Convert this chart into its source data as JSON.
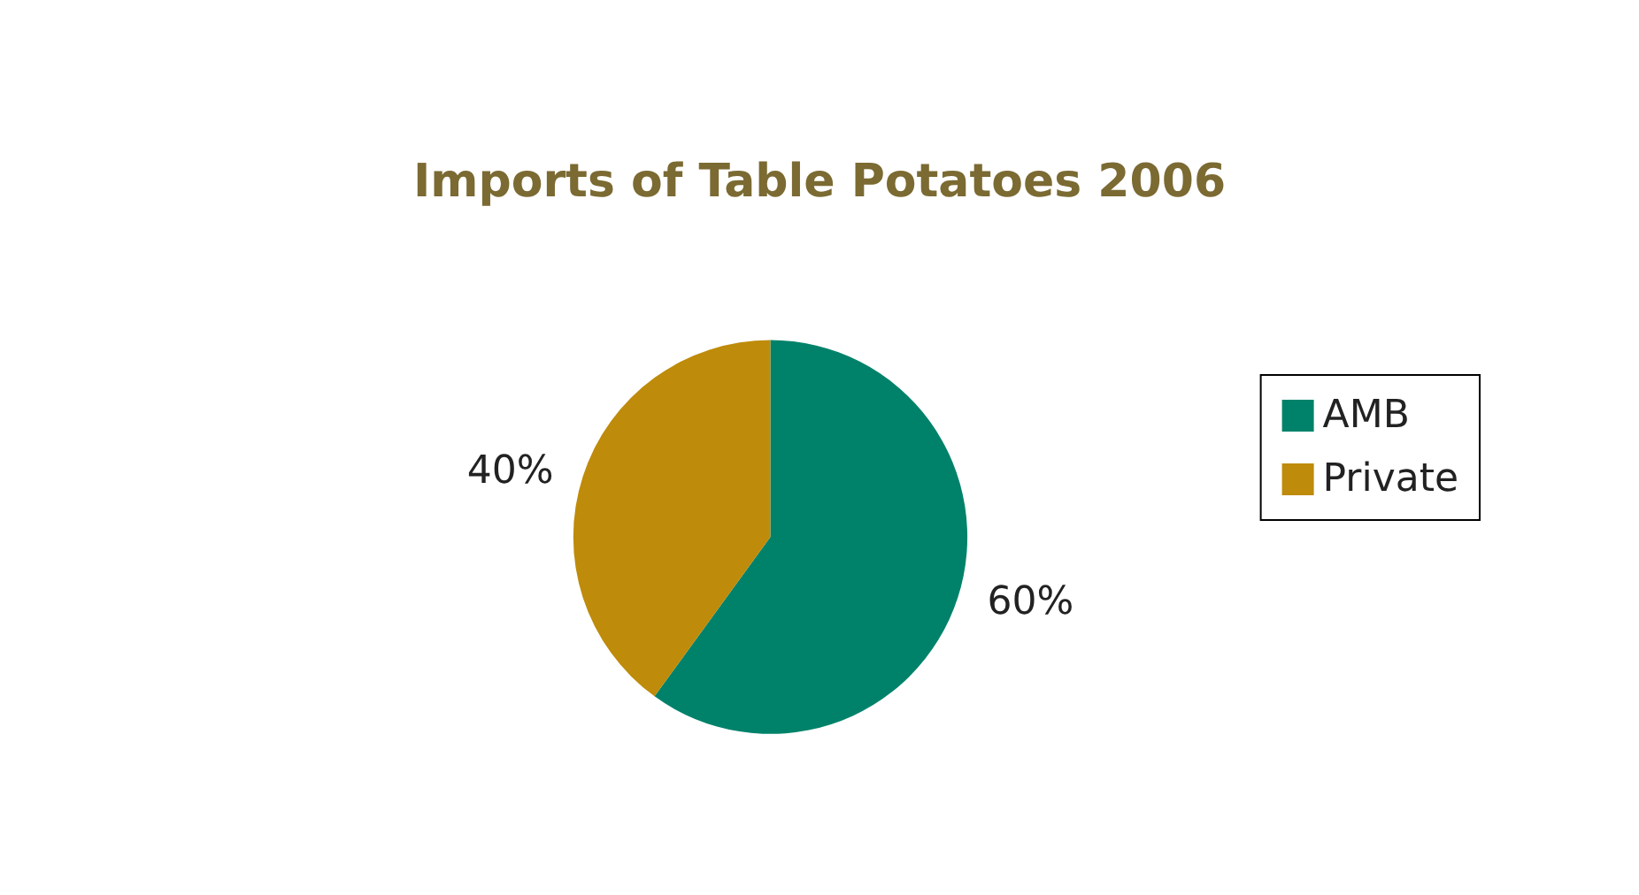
{
  "chart_data": {
    "type": "pie",
    "title": "Imports of Table Potatoes 2006",
    "categories": [
      "AMB",
      "Private"
    ],
    "values": [
      60,
      40
    ],
    "colors": [
      "#00826a",
      "#be8b0a"
    ],
    "value_labels": [
      "60%",
      "40%"
    ],
    "legend": "right"
  }
}
